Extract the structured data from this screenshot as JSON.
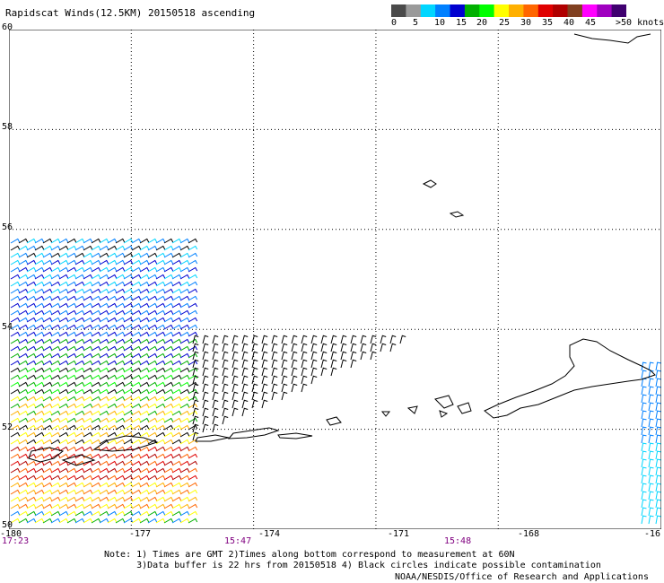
{
  "title": "Rapidscat Winds(12.5KM) 20150518 ascending",
  "colorbar": {
    "labels": [
      "0",
      "5",
      "10",
      "15",
      "20",
      "25",
      "30",
      "35",
      "40",
      "45",
      ">50 knots"
    ],
    "colors": [
      "#4a4a4a",
      "#9a9a9a",
      "#00d6ff",
      "#0080ff",
      "#0000d0",
      "#00b000",
      "#00ff00",
      "#ffff00",
      "#ffb000",
      "#ff6600",
      "#e00000",
      "#b00000",
      "#804020",
      "#ff00ff",
      "#a000c0",
      "#400070"
    ]
  },
  "map": {
    "lon_range": [
      -180,
      -164
    ],
    "lat_range": [
      50,
      60
    ],
    "lat_labels": [
      "60",
      "58",
      "56",
      "54",
      "52",
      "50"
    ],
    "lon_labels": [
      "-180",
      "-177",
      "-174",
      "-171",
      "-168",
      "-16"
    ],
    "time_labels": [
      "17:23",
      "15:47",
      "15:48"
    ]
  },
  "note": {
    "line1": "Note: 1) Times are GMT 2)Times along bottom correspond to measurement at 60N",
    "line2": "      3)Data buffer is 22 hrs from 20150518 4) Black circles indicate possible contamination"
  },
  "credit": "NOAA/NESDIS/Office of Research and Applications"
}
